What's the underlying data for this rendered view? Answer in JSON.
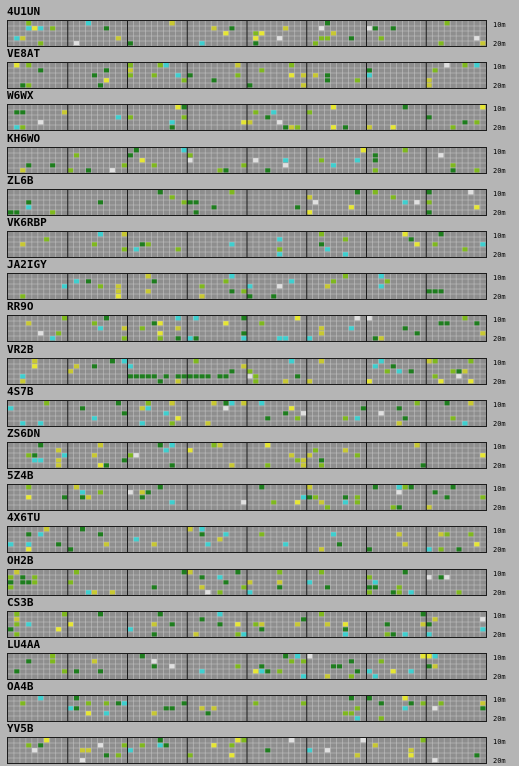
{
  "bands": {
    "top_label": "10m",
    "bottom_label": "20m"
  },
  "colors": {
    "background": "#b5b5b5",
    "grid_fill": "#8e8e8e",
    "grid_line": "#c9c9c9",
    "hour_divider": "#1c1c1c",
    "signal_levels": [
      "#1e7d1e",
      "#7fb81e",
      "#c8c832",
      "#e6e632",
      "#3ecfcf",
      "#e0e0e0"
    ]
  },
  "beacons": [
    {
      "callsign": "4U1UN"
    },
    {
      "callsign": "VE8AT"
    },
    {
      "callsign": "W6WX"
    },
    {
      "callsign": "KH6WO"
    },
    {
      "callsign": "ZL6B"
    },
    {
      "callsign": "VK6RBP"
    },
    {
      "callsign": "JA2IGY"
    },
    {
      "callsign": "RR9O"
    },
    {
      "callsign": "VR2B"
    },
    {
      "callsign": "4S7B"
    },
    {
      "callsign": "ZS6DN"
    },
    {
      "callsign": "5Z4B"
    },
    {
      "callsign": "4X6TU"
    },
    {
      "callsign": "OH2B"
    },
    {
      "callsign": "CS3B"
    },
    {
      "callsign": "LU4AA"
    },
    {
      "callsign": "OA4B"
    },
    {
      "callsign": "YV5B"
    }
  ]
}
